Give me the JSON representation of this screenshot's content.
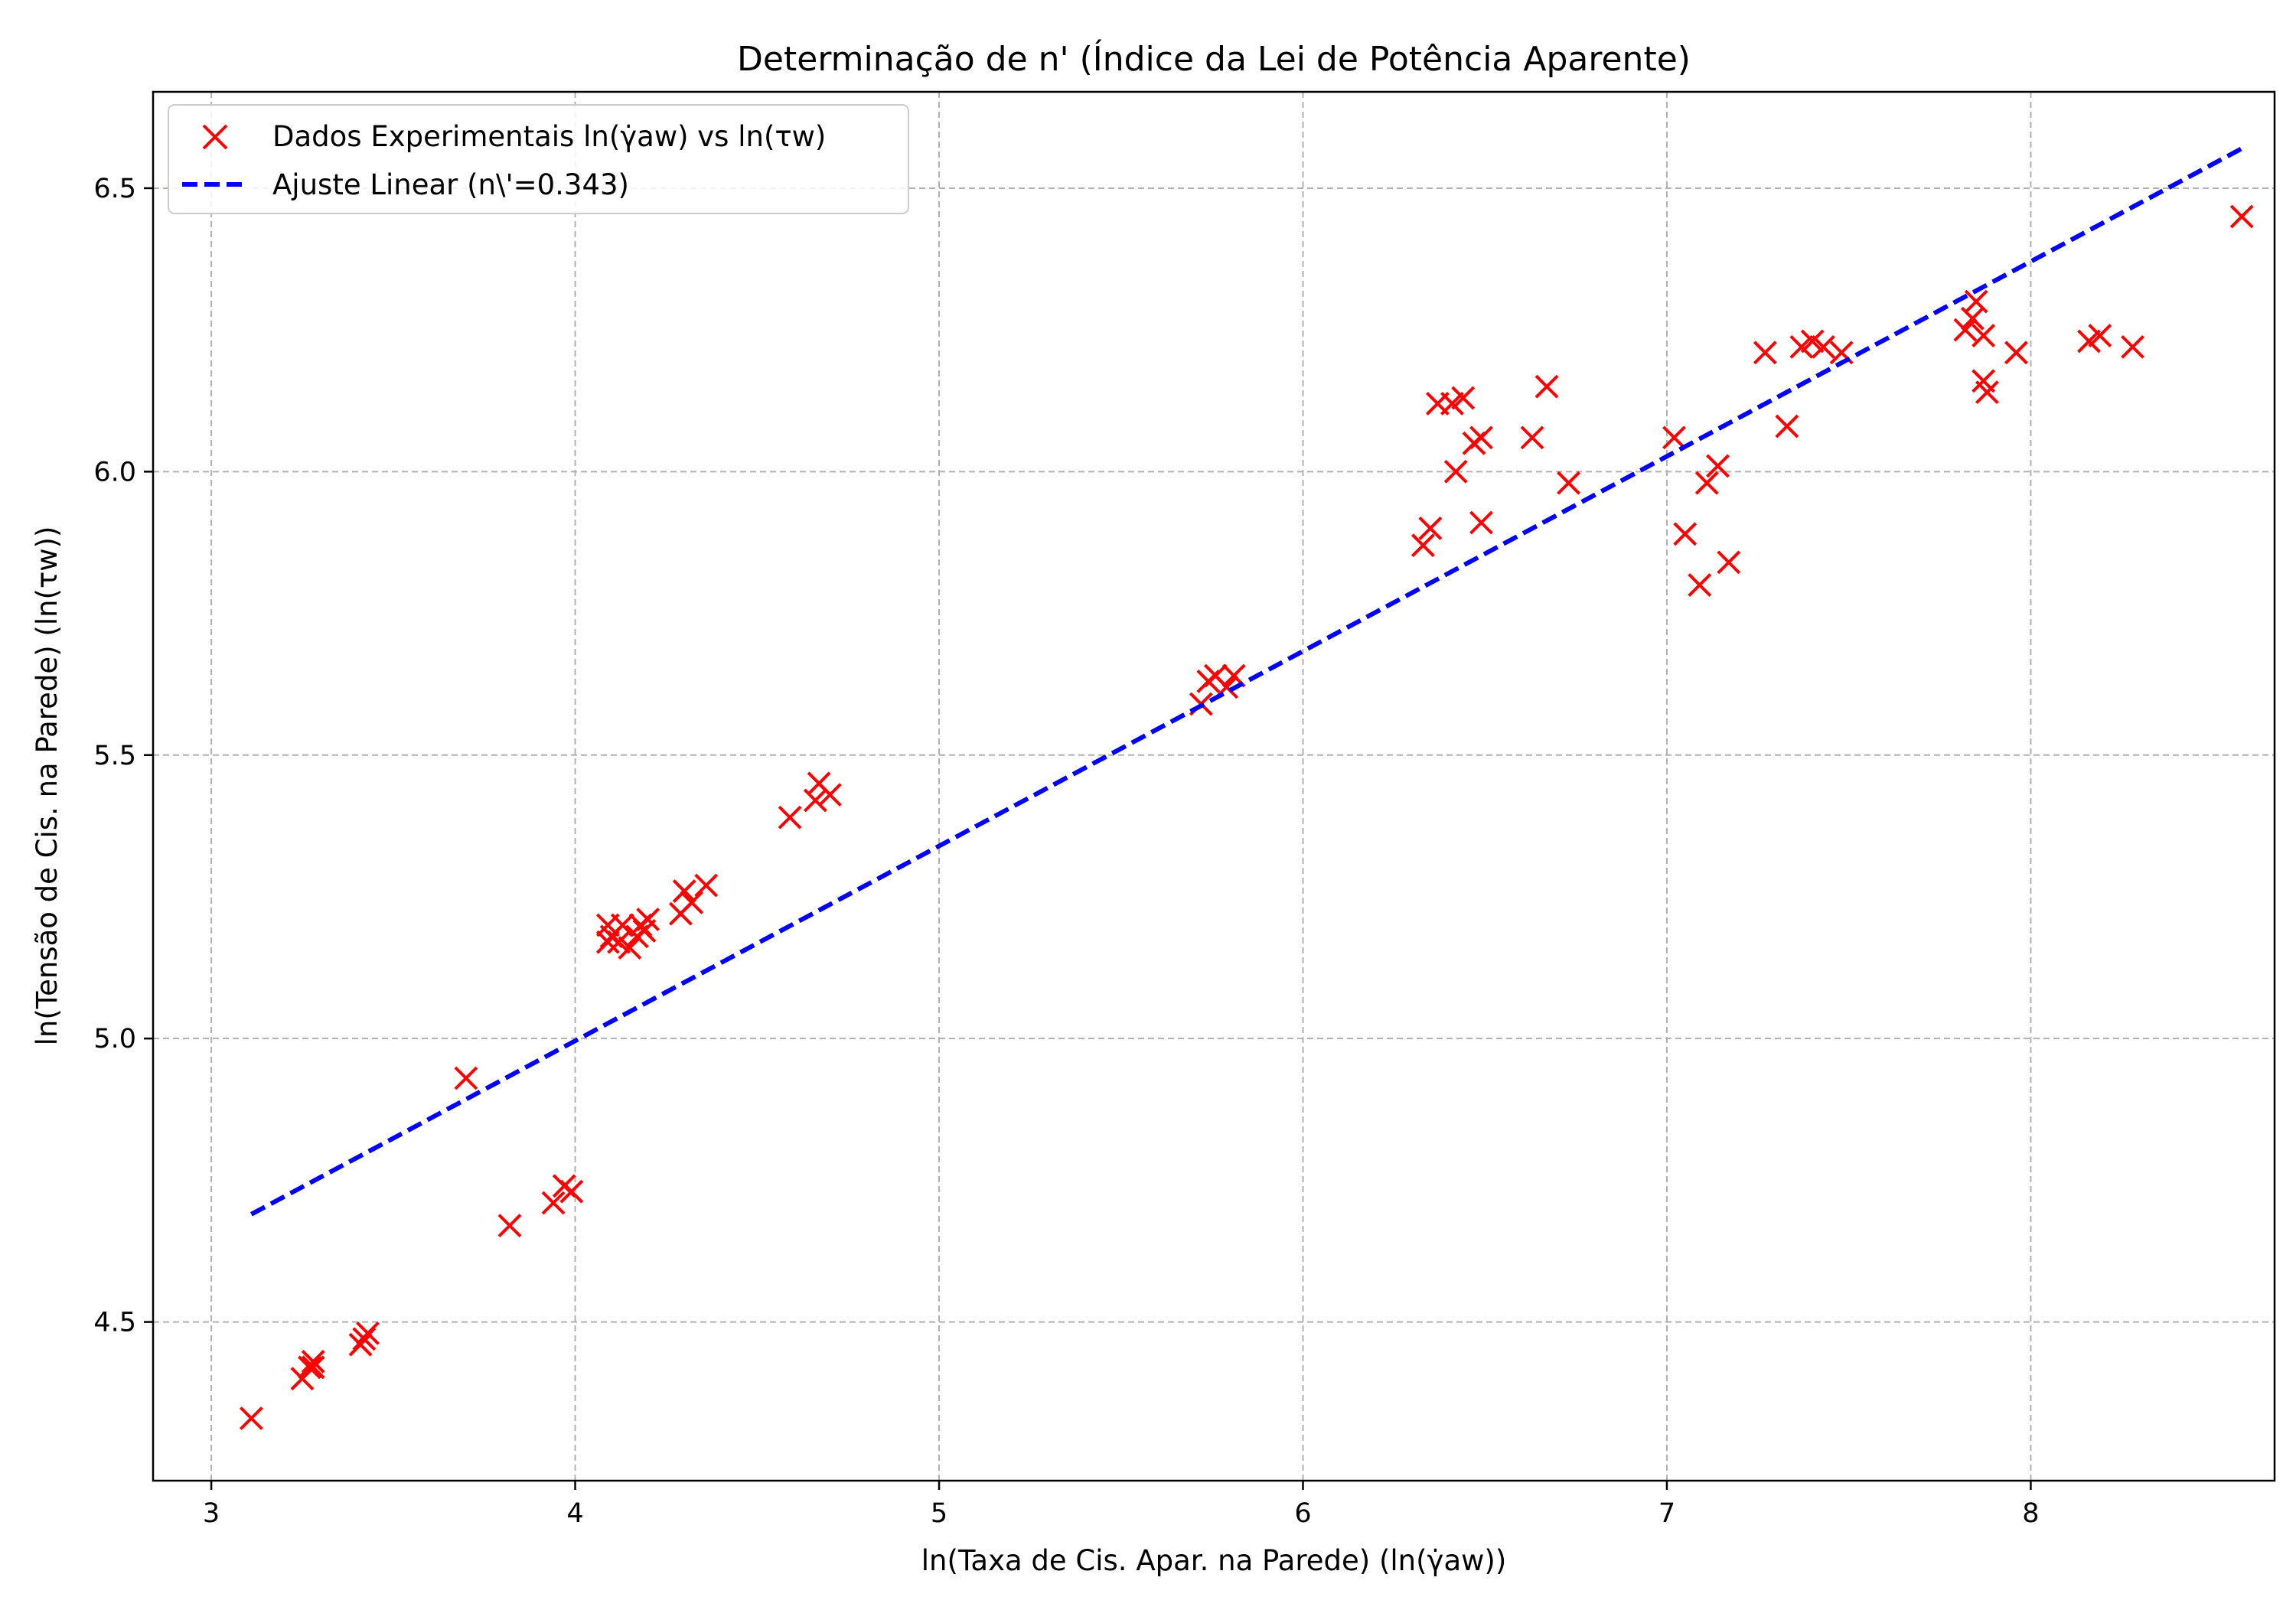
{
  "chart_data": {
    "type": "scatter",
    "title": "Determinação de n' (Índice da Lei de Potência Aparente)",
    "xlabel": "ln(Taxa de Cis. Apar. na Parede) (ln(γ̇aw))",
    "ylabel": "ln(Tensão de Cis. na Parede) (ln(τw))",
    "xlim": [
      2.84,
      8.67
    ],
    "ylim": [
      4.22,
      6.67
    ],
    "xticks": [
      3,
      4,
      5,
      6,
      7,
      8
    ],
    "yticks": [
      4.5,
      5.0,
      5.5,
      6.0,
      6.5
    ],
    "xtick_labels": [
      "3",
      "4",
      "5",
      "6",
      "7",
      "8"
    ],
    "ytick_labels": [
      "4.5",
      "5.0",
      "5.5",
      "6.0",
      "6.5"
    ],
    "grid": true,
    "legend_position": "top-left",
    "series": [
      {
        "name": "Dados Experimentais ln(γ̇aw) vs ln(τw)",
        "kind": "scatter",
        "marker": "x",
        "color": "#ff0000",
        "points": [
          [
            3.11,
            4.33
          ],
          [
            3.25,
            4.4
          ],
          [
            3.27,
            4.42
          ],
          [
            3.28,
            4.43
          ],
          [
            3.28,
            4.42
          ],
          [
            3.41,
            4.46
          ],
          [
            3.42,
            4.47
          ],
          [
            3.43,
            4.48
          ],
          [
            3.7,
            4.93
          ],
          [
            3.82,
            4.67
          ],
          [
            3.94,
            4.71
          ],
          [
            3.97,
            4.74
          ],
          [
            3.99,
            4.73
          ],
          [
            4.09,
            5.17
          ],
          [
            4.09,
            5.2
          ],
          [
            4.1,
            5.18
          ],
          [
            4.12,
            5.17
          ],
          [
            4.13,
            5.2
          ],
          [
            4.15,
            5.16
          ],
          [
            4.17,
            5.18
          ],
          [
            4.18,
            5.2
          ],
          [
            4.19,
            5.19
          ],
          [
            4.2,
            5.21
          ],
          [
            4.29,
            5.22
          ],
          [
            4.3,
            5.26
          ],
          [
            4.32,
            5.24
          ],
          [
            4.36,
            5.27
          ],
          [
            4.59,
            5.39
          ],
          [
            4.66,
            5.42
          ],
          [
            4.67,
            5.45
          ],
          [
            4.7,
            5.43
          ],
          [
            5.72,
            5.59
          ],
          [
            5.74,
            5.63
          ],
          [
            5.76,
            5.64
          ],
          [
            5.79,
            5.62
          ],
          [
            5.81,
            5.64
          ],
          [
            6.33,
            5.87
          ],
          [
            6.35,
            5.9
          ],
          [
            6.37,
            6.12
          ],
          [
            6.41,
            6.12
          ],
          [
            6.42,
            6.0
          ],
          [
            6.44,
            6.13
          ],
          [
            6.47,
            6.05
          ],
          [
            6.49,
            6.06
          ],
          [
            6.49,
            5.91
          ],
          [
            6.63,
            6.06
          ],
          [
            6.67,
            6.15
          ],
          [
            6.73,
            5.98
          ],
          [
            7.02,
            6.06
          ],
          [
            7.05,
            5.89
          ],
          [
            7.09,
            5.8
          ],
          [
            7.11,
            5.98
          ],
          [
            7.14,
            6.01
          ],
          [
            7.17,
            5.84
          ],
          [
            7.27,
            6.21
          ],
          [
            7.33,
            6.08
          ],
          [
            7.37,
            6.22
          ],
          [
            7.4,
            6.23
          ],
          [
            7.43,
            6.22
          ],
          [
            7.48,
            6.21
          ],
          [
            7.82,
            6.25
          ],
          [
            7.84,
            6.27
          ],
          [
            7.85,
            6.3
          ],
          [
            7.87,
            6.24
          ],
          [
            7.87,
            6.16
          ],
          [
            7.88,
            6.14
          ],
          [
            7.96,
            6.21
          ],
          [
            8.16,
            6.23
          ],
          [
            8.19,
            6.24
          ],
          [
            8.28,
            6.22
          ],
          [
            8.58,
            6.45
          ]
        ]
      },
      {
        "name": "Ajuste Linear (n\\'=0.343)",
        "kind": "line",
        "style": "dashed",
        "color": "#0000ff",
        "points": [
          [
            3.11,
            4.69
          ],
          [
            8.58,
            6.57
          ]
        ]
      }
    ]
  }
}
